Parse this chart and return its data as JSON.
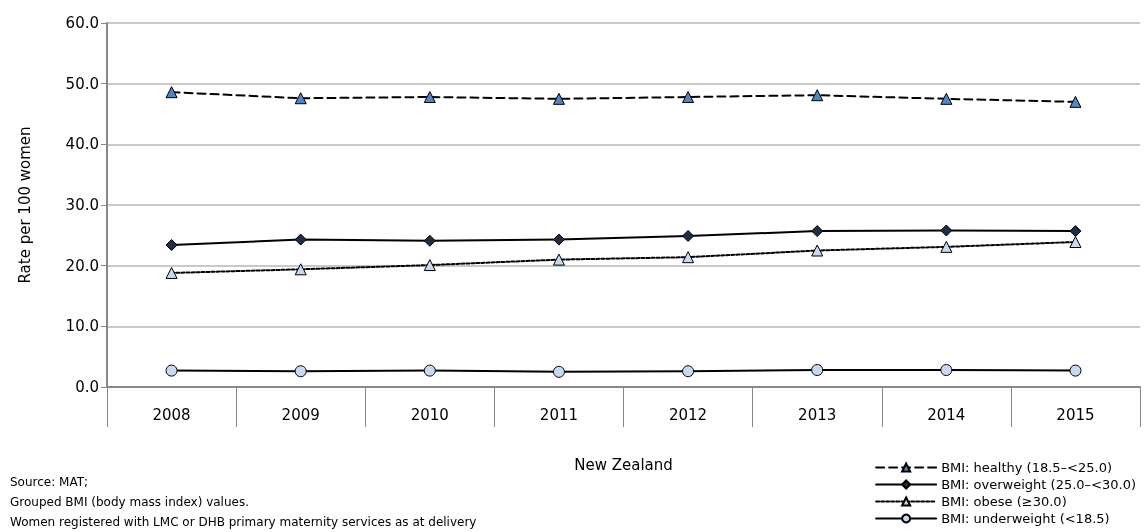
{
  "chart_data": {
    "type": "line",
    "xlabel": "New Zealand",
    "ylabel": "Rate per 100 women",
    "categories": [
      "2008",
      "2009",
      "2010",
      "2011",
      "2012",
      "2013",
      "2014",
      "2015"
    ],
    "series": [
      {
        "name": "BMI: healthy (18.5–<25.0)",
        "color": "#4f86c6",
        "marker": "triangle",
        "line_style": "dashed",
        "values": [
          48.6,
          47.6,
          47.8,
          47.5,
          47.8,
          48.1,
          47.5,
          47.0
        ]
      },
      {
        "name": "BMI: overweight (25.0–<30.0)",
        "color": "#1f2d45",
        "marker": "diamond",
        "line_style": "solid",
        "values": [
          23.4,
          24.3,
          24.1,
          24.3,
          24.9,
          25.7,
          25.8,
          25.7
        ]
      },
      {
        "name": "BMI: obese (≥30.0)",
        "color": "#c5d9f1",
        "marker": "triangle",
        "line_style": "dotted",
        "values": [
          18.8,
          19.4,
          20.1,
          21.0,
          21.4,
          22.5,
          23.1,
          23.9
        ]
      },
      {
        "name": "BMI: underweight (<18.5)",
        "color": "#c5d9f1",
        "marker": "circle",
        "line_style": "solid",
        "values": [
          2.7,
          2.6,
          2.7,
          2.5,
          2.6,
          2.8,
          2.8,
          2.7
        ]
      }
    ],
    "ylim": [
      0,
      60
    ],
    "yticks": [
      {
        "value": 0,
        "label": "0.0"
      },
      {
        "value": 10,
        "label": "10.0"
      },
      {
        "value": 20,
        "label": "20.0"
      },
      {
        "value": 30,
        "label": "30.0"
      },
      {
        "value": 40,
        "label": "40.0"
      },
      {
        "value": 50,
        "label": "50.0"
      },
      {
        "value": 60,
        "label": "60.0"
      }
    ],
    "grid": "y",
    "legend": "bottom right",
    "annotations": [
      "Source: MAT;",
      "Grouped BMI (body mass index) values.",
      "Women registered with LMC or DHB primary maternity services as at delivery"
    ]
  }
}
